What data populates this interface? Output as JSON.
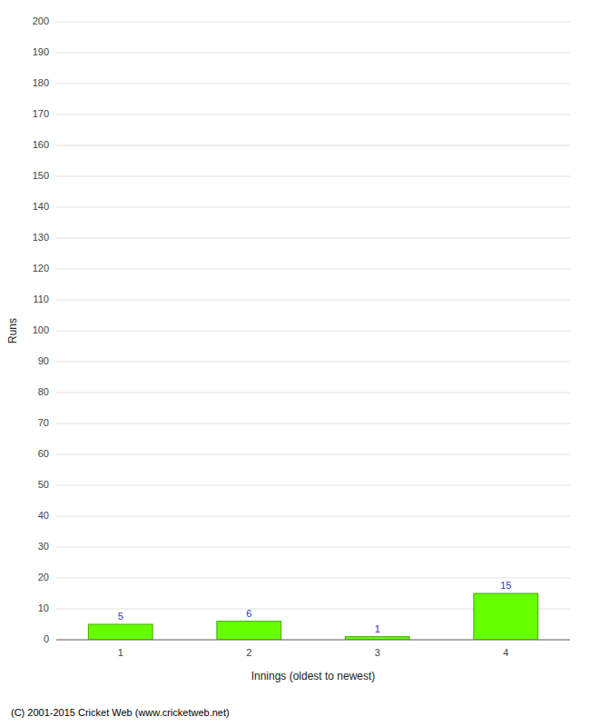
{
  "chart_data": {
    "type": "bar",
    "categories": [
      "1",
      "2",
      "3",
      "4"
    ],
    "values": [
      5,
      6,
      1,
      15
    ],
    "color": "#66ff00",
    "xlabel": "Innings (oldest to newest)",
    "ylabel": "Runs",
    "ylim": [
      0,
      200
    ],
    "yticks": [
      0,
      10,
      20,
      30,
      40,
      50,
      60,
      70,
      80,
      90,
      100,
      110,
      120,
      130,
      140,
      150,
      160,
      170,
      180,
      190,
      200
    ],
    "grid": true,
    "data_labels": true,
    "annotations": [
      "(C) 2001-2015 Cricket Web (www.cricketweb.net)"
    ]
  }
}
